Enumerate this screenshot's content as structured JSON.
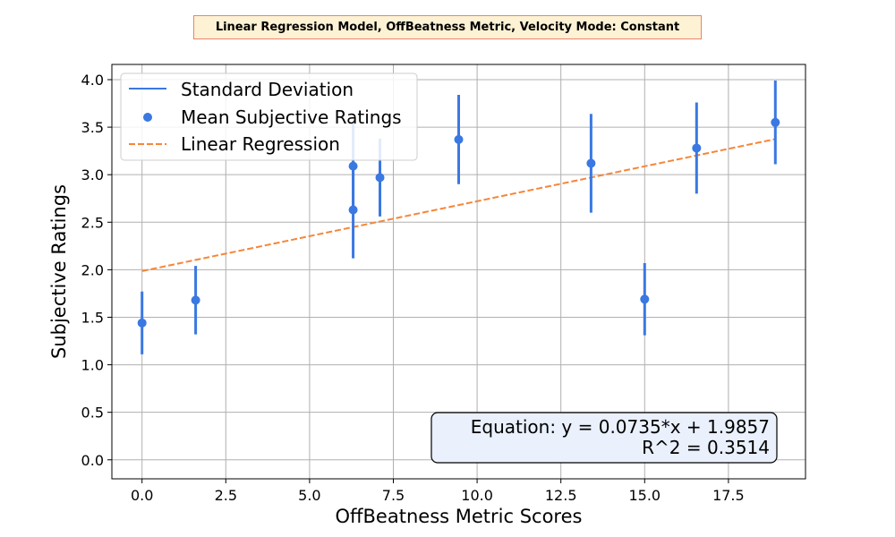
{
  "chart_data": {
    "type": "scatter",
    "title": "Linear Regression Model, OffBeatness Metric, Velocity Mode: Constant",
    "xlabel": "OffBeatness Metric Scores",
    "ylabel": "Subjective Ratings",
    "xlim": [
      -0.9,
      19.8
    ],
    "ylim": [
      -0.2,
      4.16
    ],
    "xticks": [
      0.0,
      2.5,
      5.0,
      7.5,
      10.0,
      12.5,
      15.0,
      17.5
    ],
    "xtick_labels": [
      "0.0",
      "2.5",
      "5.0",
      "7.5",
      "10.0",
      "12.5",
      "15.0",
      "17.5"
    ],
    "yticks": [
      0.0,
      0.5,
      1.0,
      1.5,
      2.0,
      2.5,
      3.0,
      3.5,
      4.0
    ],
    "ytick_labels": [
      "0.0",
      "0.5",
      "1.0",
      "1.5",
      "2.0",
      "2.5",
      "3.0",
      "3.5",
      "4.0"
    ],
    "grid": true,
    "legend_position": "top-left",
    "legend": [
      "Standard Deviation",
      "Mean Subjective Ratings",
      "Linear Regression"
    ],
    "series": [
      {
        "name": "Mean Subjective Ratings",
        "color": "#3a78e2",
        "points": [
          {
            "x": 0.0,
            "y": 1.44,
            "sd": 0.33
          },
          {
            "x": 1.6,
            "y": 1.68,
            "sd": 0.36
          },
          {
            "x": 6.3,
            "y": 3.09,
            "sd": 0.46
          },
          {
            "x": 6.3,
            "y": 2.63,
            "sd": 0.51
          },
          {
            "x": 7.1,
            "y": 2.97,
            "sd": 0.41
          },
          {
            "x": 9.45,
            "y": 3.37,
            "sd": 0.47
          },
          {
            "x": 13.4,
            "y": 3.12,
            "sd": 0.52
          },
          {
            "x": 15.0,
            "y": 1.69,
            "sd": 0.38
          },
          {
            "x": 16.55,
            "y": 3.28,
            "sd": 0.48
          },
          {
            "x": 18.9,
            "y": 3.55,
            "sd": 0.44
          }
        ]
      }
    ],
    "regression": {
      "name": "Linear Regression",
      "slope": 0.0735,
      "intercept": 1.9857,
      "x_range": [
        0.0,
        18.9
      ],
      "color": "#f5863a"
    },
    "annotation": {
      "equation": "Equation: y = 0.0735*x + 1.9857",
      "r_squared": "R^2 = 0.3514"
    }
  }
}
